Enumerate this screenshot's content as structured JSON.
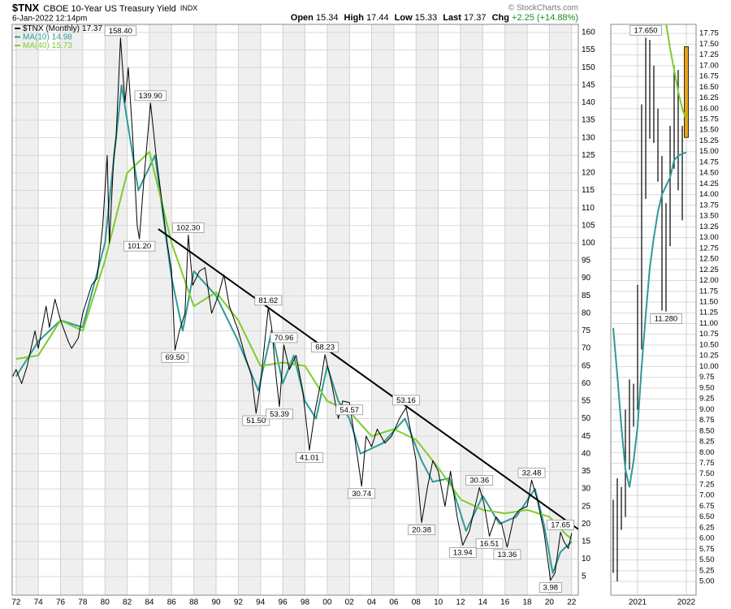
{
  "header": {
    "symbol": "$TNX",
    "name": "CBOE 10-Year US Treasury Yield",
    "exchange": "INDX",
    "timestamp": "6-Jan-2022 12:14pm",
    "open_label": "Open",
    "open": 15.34,
    "high_label": "High",
    "high": 17.44,
    "low_label": "Low",
    "low": 15.33,
    "last_label": "Last",
    "last": 17.37,
    "chg_label": "Chg",
    "chg": "+2.25 (+14.88%)",
    "source": "© StockCharts.com"
  },
  "chart_data": [
    {
      "type": "line",
      "xlim": [
        1971.65,
        2022.6
      ],
      "ylim": [
        -0.3,
        162.3
      ],
      "xticks": [
        {
          "value": 1972,
          "label": "72"
        },
        {
          "value": 1974,
          "label": "74"
        },
        {
          "value": 1976,
          "label": "76"
        },
        {
          "value": 1978,
          "label": "78"
        },
        {
          "value": 1980,
          "label": "80"
        },
        {
          "value": 1982,
          "label": "82"
        },
        {
          "value": 1984,
          "label": "84"
        },
        {
          "value": 1986,
          "label": "86"
        },
        {
          "value": 1988,
          "label": "88"
        },
        {
          "value": 1990,
          "label": "90"
        },
        {
          "value": 1992,
          "label": "92"
        },
        {
          "value": 1994,
          "label": "94"
        },
        {
          "value": 1996,
          "label": "96"
        },
        {
          "value": 1998,
          "label": "98"
        },
        {
          "value": 2000,
          "label": "00"
        },
        {
          "value": 2002,
          "label": "02"
        },
        {
          "value": 2004,
          "label": "04"
        },
        {
          "value": 2006,
          "label": "06"
        },
        {
          "value": 2008,
          "label": "08"
        },
        {
          "value": 2010,
          "label": "10"
        },
        {
          "value": 2012,
          "label": "12"
        },
        {
          "value": 2014,
          "label": "14"
        },
        {
          "value": 2016,
          "label": "16"
        },
        {
          "value": 2018,
          "label": "18"
        },
        {
          "value": 2020,
          "label": "20"
        },
        {
          "value": 2022,
          "label": "22"
        }
      ],
      "yticks": [
        5,
        10,
        15,
        20,
        25,
        30,
        35,
        40,
        45,
        50,
        55,
        60,
        65,
        70,
        75,
        80,
        85,
        90,
        95,
        100,
        105,
        110,
        115,
        120,
        125,
        130,
        135,
        140,
        145,
        150,
        155,
        160
      ],
      "grid": true,
      "series": [
        {
          "name": "$TNX (Monthly)",
          "last": 17.37,
          "color": "#000000",
          "x": [
            1971.7,
            1972.0,
            1972.5,
            1973.0,
            1973.7,
            1974.0,
            1974.7,
            1975.0,
            1975.5,
            1976.0,
            1976.7,
            1977.0,
            1977.6,
            1978.0,
            1978.8,
            1979.3,
            1979.8,
            1980.2,
            1980.4,
            1980.8,
            1981.0,
            1981.4,
            1981.8,
            1982.1,
            1982.5,
            1982.9,
            1983.1,
            1983.5,
            1984.1,
            1984.6,
            1985.0,
            1985.6,
            1986.0,
            1986.3,
            1986.7,
            1987.2,
            1987.5,
            1987.9,
            1988.5,
            1989.0,
            1989.6,
            1990.2,
            1990.7,
            1991.2,
            1992.0,
            1992.6,
            1993.2,
            1993.6,
            1994.0,
            1994.7,
            1995.0,
            1995.4,
            1995.7,
            1996.1,
            1996.6,
            1997.2,
            1997.8,
            1998.4,
            1998.9,
            1999.4,
            1999.8,
            2000.4,
            2001.0,
            2001.4,
            2002.0,
            2002.5,
            2003.1,
            2003.5,
            2004.0,
            2004.5,
            2005.2,
            2005.8,
            2006.5,
            2007.1,
            2007.6,
            2008.0,
            2008.5,
            2009.0,
            2009.5,
            2010.0,
            2010.6,
            2011.1,
            2011.7,
            2012.2,
            2012.8,
            2013.7,
            2014.1,
            2014.6,
            2015.2,
            2015.7,
            2016.2,
            2016.8,
            2017.3,
            2018.0,
            2018.4,
            2018.9,
            2019.5,
            2020.1,
            2020.5,
            2021.0,
            2021.3,
            2021.7,
            2022.0
          ],
          "values": [
            62,
            64,
            60,
            65,
            75,
            70,
            82,
            76,
            84,
            78,
            72,
            70,
            73,
            80,
            88,
            90,
            105,
            125,
            100,
            125,
            130,
            158.4,
            140,
            150,
            130,
            105,
            101.2,
            118,
            139.9,
            125,
            115,
            100,
            92,
            69.5,
            75,
            80,
            102.3,
            88,
            92,
            93,
            80,
            85,
            91,
            82,
            75,
            68,
            62,
            51.5,
            60,
            81.62,
            76,
            62,
            53.39,
            70.96,
            64,
            68,
            58,
            41.01,
            52,
            60,
            68.23,
            60,
            50,
            55,
            54.57,
            44,
            30.74,
            45,
            42,
            47,
            43,
            45,
            50,
            53.16,
            45,
            38,
            20.38,
            30,
            38,
            35,
            25,
            35,
            22,
            13.94,
            18,
            30.36,
            26,
            16.51,
            22,
            20,
            13.36,
            22,
            24,
            25,
            32.48,
            27,
            18,
            3.98,
            6,
            17.65,
            15,
            13,
            17.37
          ]
        },
        {
          "name": "MA(10)",
          "last": 14.98,
          "color": "#2e9a96",
          "x": [
            1972,
            1974,
            1976,
            1978,
            1980,
            1981.5,
            1983,
            1984.5,
            1986,
            1987,
            1988,
            1990,
            1992,
            1993.8,
            1995,
            1996,
            1997,
            1998,
            1999,
            2000,
            2001,
            2002,
            2003,
            2005,
            2007,
            2008.5,
            2009.5,
            2011,
            2012.5,
            2014,
            2015.5,
            2017,
            2018.7,
            2019.5,
            2020.3,
            2021,
            2022
          ],
          "values": [
            62,
            72,
            78,
            76,
            100,
            145,
            115,
            125,
            90,
            75,
            92,
            85,
            72,
            58,
            75,
            60,
            68,
            55,
            50,
            65,
            55,
            50,
            40,
            43,
            50,
            38,
            32,
            33,
            18,
            28,
            20,
            22,
            30,
            20,
            6,
            12,
            14.98
          ]
        },
        {
          "name": "MA(40)",
          "last": 15.73,
          "color": "#7ccd2c",
          "x": [
            1972,
            1974,
            1976,
            1978,
            1980,
            1982,
            1984,
            1986,
            1988,
            1990,
            1992,
            1994,
            1996,
            1998,
            2000,
            2002,
            2004,
            2006,
            2008,
            2010,
            2012,
            2014,
            2016,
            2018,
            2020,
            2021.5,
            2022
          ],
          "values": [
            67,
            68,
            78,
            75,
            95,
            120,
            126,
            100,
            82,
            86,
            78,
            65,
            66,
            65,
            55,
            52,
            45,
            47,
            44,
            36,
            27,
            24,
            23,
            24,
            22,
            17,
            15.73
          ]
        }
      ],
      "trendline": {
        "color": "#000000",
        "x": [
          1984.8,
          2022.6
        ],
        "values": [
          104,
          18.5
        ]
      },
      "annotations": [
        {
          "x": 1981.4,
          "value": 158.4,
          "label": "158.40"
        },
        {
          "x": 1984.1,
          "value": 139.9,
          "label": "139.90"
        },
        {
          "x": 1983.1,
          "value": 101.2,
          "label": "101.20"
        },
        {
          "x": 1987.5,
          "value": 102.3,
          "label": "102.30"
        },
        {
          "x": 1986.3,
          "value": 69.5,
          "label": "69.50"
        },
        {
          "x": 1994.7,
          "value": 81.62,
          "label": "81.62"
        },
        {
          "x": 1993.6,
          "value": 51.5,
          "label": "51.50"
        },
        {
          "x": 1996.1,
          "value": 70.96,
          "label": "70.96"
        },
        {
          "x": 1995.7,
          "value": 53.39,
          "label": "53.39"
        },
        {
          "x": 1999.8,
          "value": 68.23,
          "label": "68.23"
        },
        {
          "x": 1998.4,
          "value": 41.01,
          "label": "41.01"
        },
        {
          "x": 2002.0,
          "value": 54.57,
          "label": "54.57"
        },
        {
          "x": 2003.1,
          "value": 30.74,
          "label": "30.74"
        },
        {
          "x": 2007.1,
          "value": 53.16,
          "label": "53.16"
        },
        {
          "x": 2008.5,
          "value": 20.38,
          "label": "20.38"
        },
        {
          "x": 2012.2,
          "value": 13.94,
          "label": "13.94"
        },
        {
          "x": 2013.7,
          "value": 30.36,
          "label": "30.36"
        },
        {
          "x": 2014.6,
          "value": 16.51,
          "label": "16.51"
        },
        {
          "x": 2016.2,
          "value": 13.36,
          "label": "13.36"
        },
        {
          "x": 2018.4,
          "value": 32.48,
          "label": "32.48"
        },
        {
          "x": 2020.1,
          "value": 3.98,
          "label": "3.98"
        },
        {
          "x": 2021.0,
          "value": 17.65,
          "label": "17.65"
        }
      ]
    },
    {
      "type": "ohlc",
      "xlim": [
        2020.45,
        2022.2
      ],
      "ylim": [
        4.68,
        17.96
      ],
      "xticks": [
        2021,
        2022
      ],
      "yticks": [
        {
          "value": 5,
          "label": "5.00"
        },
        5.25,
        {
          "value": 5.5,
          "label": "5.50"
        },
        5.75,
        {
          "value": 6,
          "label": "6.00"
        },
        6.25,
        {
          "value": 6.5,
          "label": "6.50"
        },
        6.75,
        {
          "value": 7,
          "label": "7.00"
        },
        7.25,
        {
          "value": 7.5,
          "label": "7.50"
        },
        7.75,
        {
          "value": 8,
          "label": "8.00"
        },
        8.25,
        {
          "value": 8.5,
          "label": "8.50"
        },
        8.75,
        {
          "value": 9,
          "label": "9.00"
        },
        9.25,
        {
          "value": 9.5,
          "label": "9.50"
        },
        9.75,
        {
          "value": 10,
          "label": "10.00"
        },
        10.25,
        {
          "value": 10.5,
          "label": "10.50"
        },
        10.75,
        {
          "value": 11,
          "label": "11.00"
        },
        11.25,
        {
          "value": 11.5,
          "label": "11.50"
        },
        11.75,
        {
          "value": 12,
          "label": "12.00"
        },
        12.25,
        {
          "value": 12.5,
          "label": "12.50"
        },
        12.75,
        {
          "value": 13,
          "label": "13.00"
        },
        13.25,
        {
          "value": 13.5,
          "label": "13.50"
        },
        13.75,
        {
          "value": 14,
          "label": "14.00"
        },
        14.25,
        {
          "value": 14.5,
          "label": "14.50"
        },
        14.75,
        {
          "value": 15,
          "label": "15.00"
        },
        15.25,
        {
          "value": 15.5,
          "label": "15.50"
        },
        15.75,
        {
          "value": 16,
          "label": "16.00"
        },
        16.25,
        {
          "value": 16.5,
          "label": "16.50"
        },
        16.75,
        {
          "value": 17,
          "label": "17.00"
        },
        17.25,
        {
          "value": 17.5,
          "label": "17.50"
        },
        17.75
      ],
      "grid": true,
      "color": "#000000",
      "highlight_color": "#e8a317",
      "x": [
        2020.5,
        2020.583,
        2020.667,
        2020.75,
        2020.833,
        2020.917,
        2021,
        2021.083,
        2021.167,
        2021.25,
        2021.333,
        2021.417,
        2021.5,
        2021.583,
        2021.667,
        2021.75,
        2021.833,
        2021.917,
        2022
      ],
      "high": [
        6.9,
        7.4,
        7.2,
        9.0,
        9.7,
        9.6,
        11.9,
        16.1,
        17.65,
        17.6,
        17.0,
        16.0,
        14.9,
        13.8,
        15.6,
        17.0,
        16.9,
        15.6,
        17.44
      ],
      "low": [
        5.2,
        5.0,
        6.2,
        6.5,
        7.6,
        8.6,
        9.0,
        10.4,
        13.9,
        15.3,
        15.2,
        14.3,
        11.3,
        11.28,
        12.8,
        14.6,
        14.1,
        13.4,
        15.33
      ],
      "series": [
        {
          "color": "#2e9a96",
          "x": [
            2020.5,
            2020.583,
            2020.667,
            2020.75,
            2020.833,
            2020.917,
            2021,
            2021.083,
            2021.167,
            2021.25,
            2021.333,
            2021.417,
            2021.5,
            2021.583,
            2021.667,
            2021.75,
            2021.833,
            2021.917,
            2022
          ],
          "values": [
            10.9,
            9.8,
            8.6,
            7.6,
            7.2,
            7.8,
            8.6,
            10.0,
            11.2,
            12.3,
            13.0,
            13.6,
            14.0,
            14.2,
            14.4,
            14.8,
            14.9,
            14.95,
            14.98
          ]
        },
        {
          "color": "#7ccd2c",
          "x": [
            2021.583,
            2021.667,
            2021.75,
            2021.833,
            2021.917,
            2022
          ],
          "values": [
            18.0,
            17.4,
            16.9,
            16.4,
            16.0,
            15.73
          ]
        }
      ],
      "annotations": [
        {
          "x": 2021.167,
          "value": 17.65,
          "label": "17.650"
        },
        {
          "x": 2021.583,
          "value": 11.28,
          "label": "11.280"
        }
      ]
    }
  ]
}
